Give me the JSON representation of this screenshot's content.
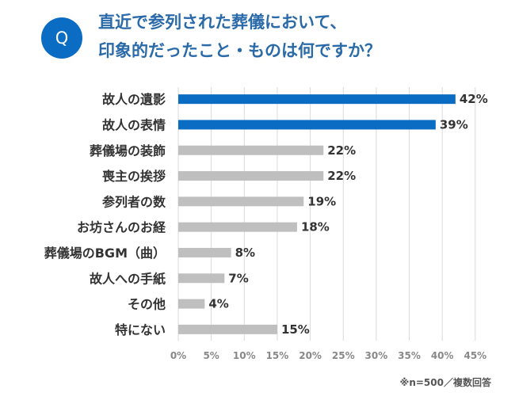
{
  "header": {
    "badge": "Q",
    "title_line1": "直近で参列された葬儀において、",
    "title_line2": "印象的だったこと・ものは何ですか？"
  },
  "colors": {
    "accent": "#0b6cc4",
    "title": "#2a6aa8",
    "bar_gray": "#bfbfbf",
    "grid": "#d9d9d9"
  },
  "footnote": "※n=500／複数回答",
  "chart_data": {
    "type": "bar",
    "orientation": "horizontal",
    "title": "直近で参列された葬儀において、印象的だったこと・ものは何ですか？",
    "categories": [
      "故人の遺影",
      "故人の表情",
      "葬儀場の装飾",
      "喪主の挨拶",
      "参列者の数",
      "お坊さんのお経",
      "葬儀場のBGM（曲）",
      "故人への手紙",
      "その他",
      "特にない"
    ],
    "values": [
      42,
      39,
      22,
      22,
      19,
      18,
      8,
      7,
      4,
      15
    ],
    "value_labels": [
      "42%",
      "39%",
      "22%",
      "22%",
      "19%",
      "18%",
      "8%",
      "7%",
      "4%",
      "15%"
    ],
    "highlight": [
      true,
      true,
      false,
      false,
      false,
      false,
      false,
      false,
      false,
      false
    ],
    "xlim": [
      0,
      45
    ],
    "xticks": [
      "0%",
      "5%",
      "10%",
      "15%",
      "20%",
      "25%",
      "30%",
      "35%",
      "40%",
      "45%"
    ],
    "grid": true,
    "xlabel": "",
    "ylabel": ""
  }
}
